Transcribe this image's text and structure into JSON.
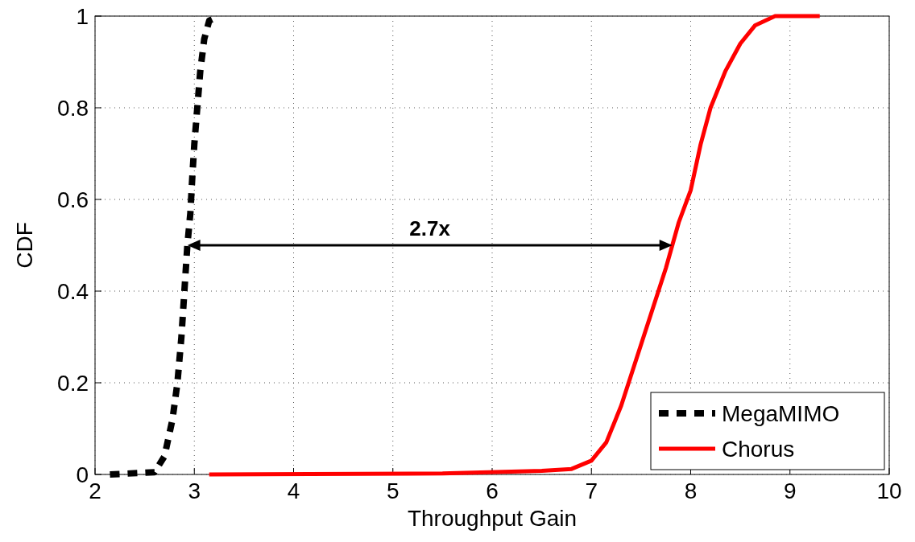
{
  "chart_data": {
    "type": "line",
    "xlabel": "Throughput Gain",
    "ylabel": "CDF",
    "xlim": [
      2,
      10
    ],
    "xticks": [
      2,
      3,
      4,
      5,
      6,
      7,
      8,
      9,
      10
    ],
    "ylim": [
      0,
      1
    ],
    "yticks": [
      0,
      0.2,
      0.4,
      0.6,
      0.8,
      1
    ],
    "grid": true,
    "legend": "bottom right",
    "annotations": [
      "2.7x"
    ],
    "series": [
      {
        "name": "MegaMIMO",
        "color": "#000000",
        "line_style": "dashed",
        "x": [
          2.15,
          2.6,
          2.7,
          2.78,
          2.83,
          2.87,
          2.9,
          2.93,
          2.96,
          2.98,
          3.0,
          3.03,
          3.06,
          3.1,
          3.15,
          3.25
        ],
        "values": [
          0,
          0.005,
          0.04,
          0.12,
          0.2,
          0.3,
          0.4,
          0.5,
          0.57,
          0.65,
          0.72,
          0.8,
          0.88,
          0.95,
          0.99,
          1
        ]
      },
      {
        "name": "Chorus",
        "color": "#ff0000",
        "line_style": "solid",
        "x": [
          3.15,
          5.5,
          6.5,
          6.8,
          7.0,
          7.15,
          7.3,
          7.45,
          7.6,
          7.75,
          7.88,
          8.0,
          8.1,
          8.2,
          8.35,
          8.5,
          8.65,
          8.85,
          9.3
        ],
        "values": [
          0,
          0.002,
          0.008,
          0.012,
          0.03,
          0.07,
          0.15,
          0.25,
          0.35,
          0.45,
          0.55,
          0.62,
          0.72,
          0.8,
          0.88,
          0.94,
          0.98,
          1,
          1
        ]
      }
    ]
  }
}
